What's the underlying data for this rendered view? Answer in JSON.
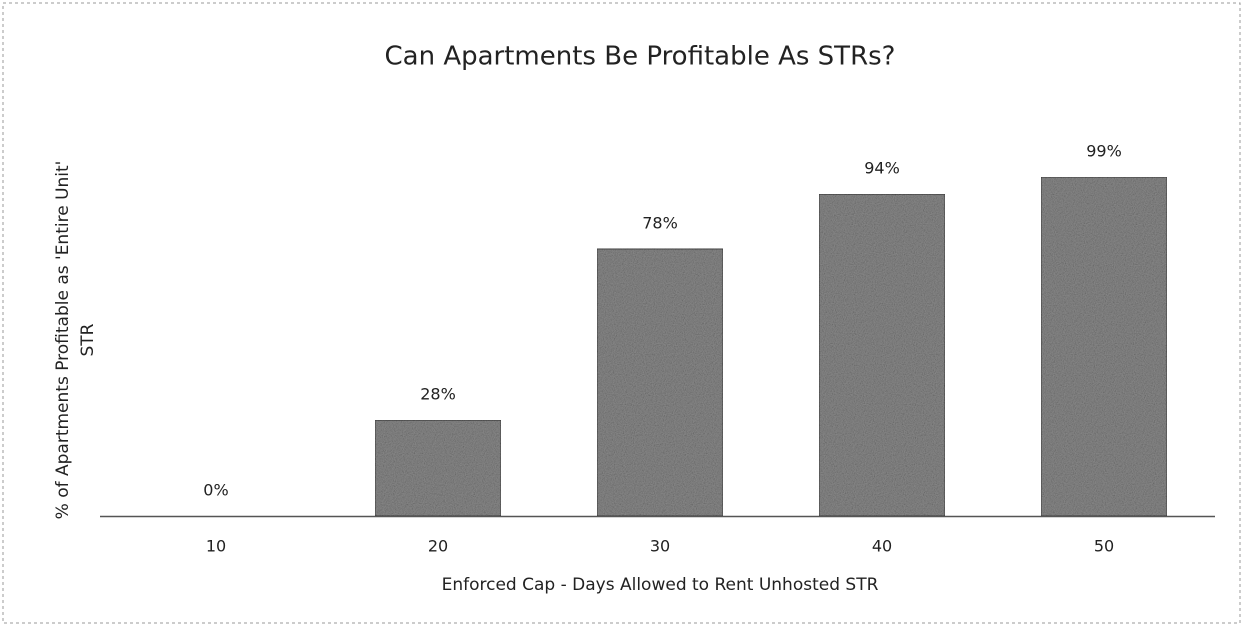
{
  "chart_data": {
    "type": "bar",
    "title": "Can Apartments Be Profitable As STRs?",
    "xlabel": "Enforced Cap - Days Allowed to Rent Unhosted STR",
    "ylabel": [
      "% of Apartments Profitable as 'Entire Unit'",
      "STR"
    ],
    "categories": [
      "10",
      "20",
      "30",
      "40",
      "50"
    ],
    "values": [
      0,
      28,
      78,
      94,
      99
    ],
    "value_labels": [
      "0%",
      "28%",
      "78%",
      "94%",
      "99%"
    ],
    "color": "#8c8c8c"
  }
}
